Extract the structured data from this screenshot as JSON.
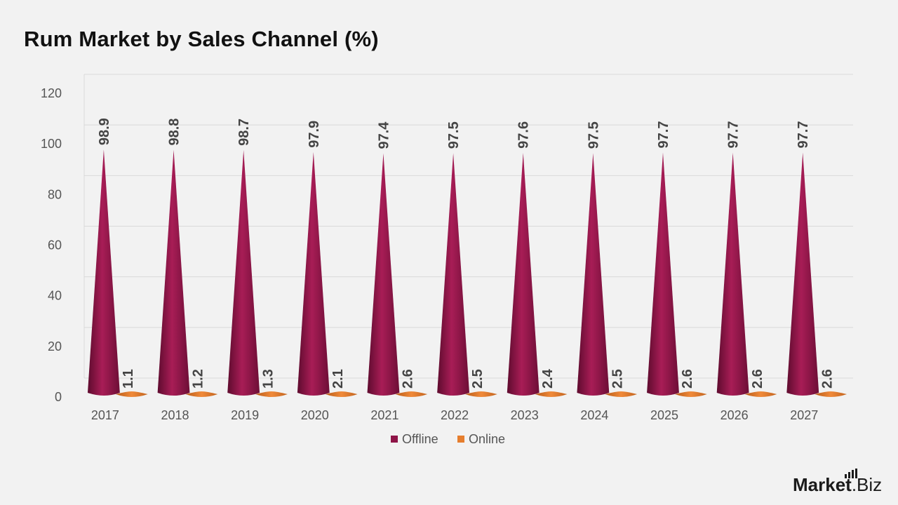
{
  "title": "Rum Market by Sales Channel (%)",
  "brand": {
    "name": "Market",
    "suffix": ".Biz",
    "logo_icon": "bar-chart-icon"
  },
  "colors": {
    "offline": "#8e1447",
    "offline_dark": "#5e0b2e",
    "offline_light": "#b2285f",
    "online": "#e67e2e",
    "online_dark": "#b85a16",
    "grid": "#d9d9d9",
    "background": "#f2f2f2"
  },
  "chart_data": {
    "type": "bar",
    "shape": "cone",
    "title": "Rum Market by Sales Channel (%)",
    "categories": [
      "2017",
      "2018",
      "2019",
      "2020",
      "2021",
      "2022",
      "2023",
      "2024",
      "2025",
      "2026",
      "2027"
    ],
    "series": [
      {
        "name": "Offline",
        "values": [
          98.9,
          98.8,
          98.7,
          97.9,
          97.4,
          97.5,
          97.6,
          97.5,
          97.7,
          97.7,
          97.7
        ]
      },
      {
        "name": "Online",
        "values": [
          1.1,
          1.2,
          1.3,
          2.1,
          2.6,
          2.5,
          2.4,
          2.5,
          2.6,
          2.6,
          2.6
        ]
      }
    ],
    "yticks": [
      "0",
      "20",
      "40",
      "60",
      "80",
      "100",
      "120"
    ],
    "ylim": [
      0,
      120
    ],
    "grid": true,
    "legend_position": "bottom",
    "data_labels": true
  }
}
